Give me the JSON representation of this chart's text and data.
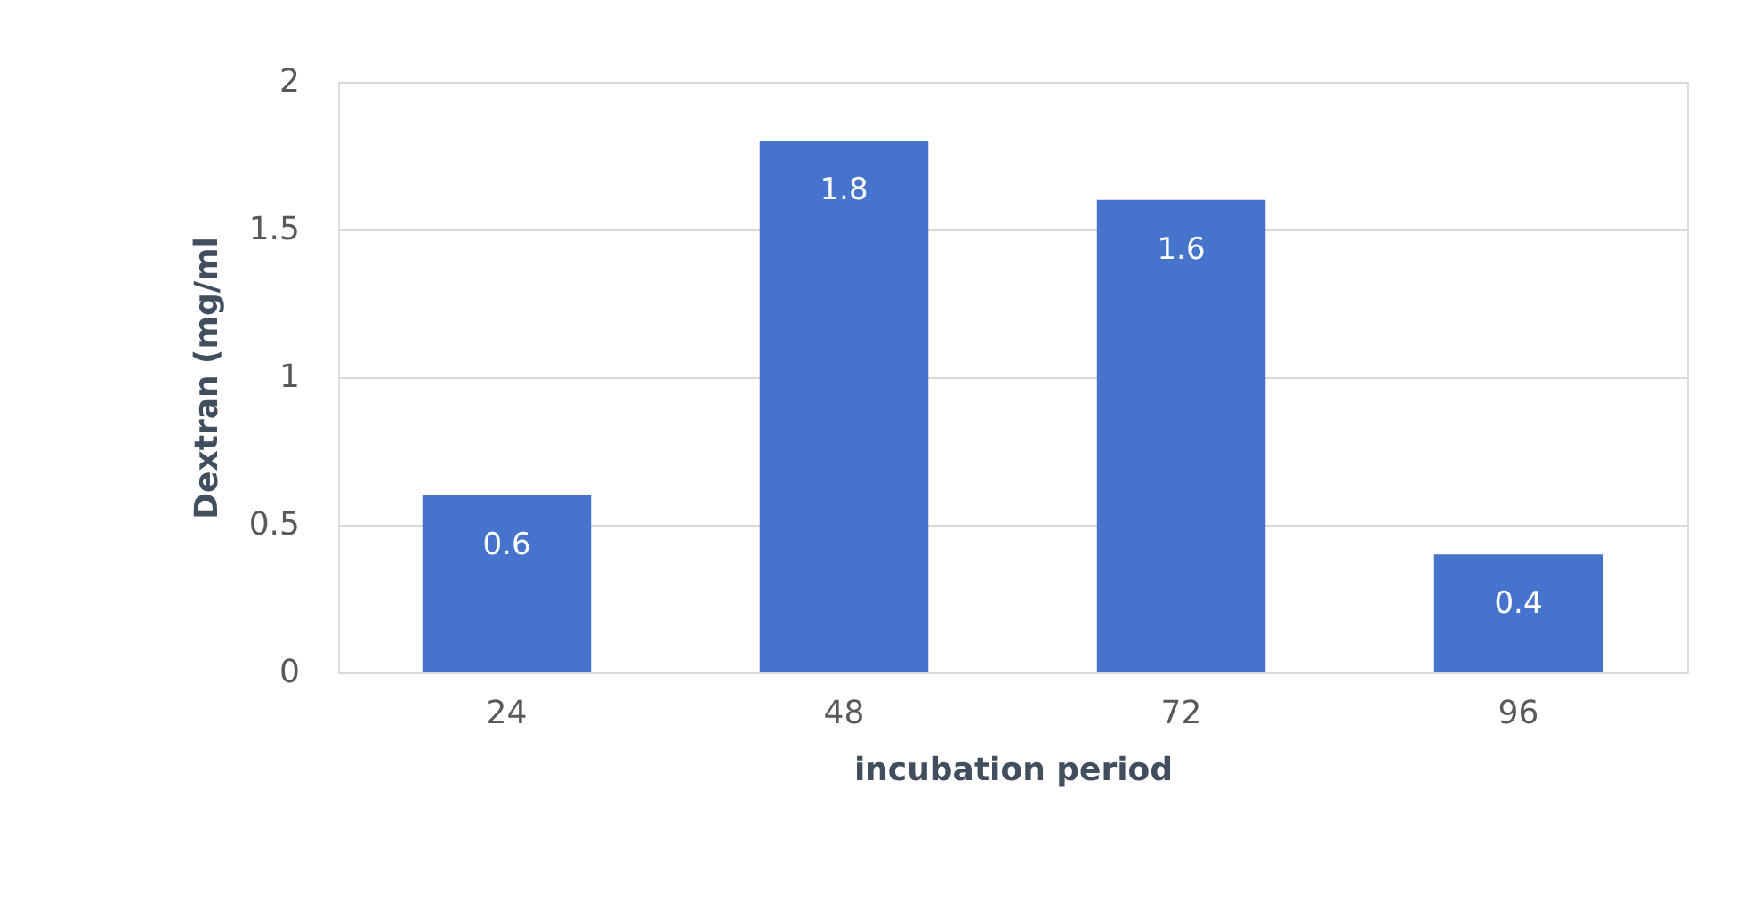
{
  "chart_data": {
    "type": "bar",
    "xlabel": "incubation period",
    "ylabel": "Dextran  (mg/ml",
    "categories": [
      "24",
      "48",
      "72",
      "96"
    ],
    "series": [
      {
        "color": "#4674cc",
        "values": [
          0.6,
          1.8,
          1.6,
          0.4
        ]
      }
    ],
    "ylim": [
      0,
      2
    ],
    "yticks": [
      0,
      0.5,
      1,
      1.5,
      2
    ],
    "grid": "y",
    "data_labels": true
  }
}
